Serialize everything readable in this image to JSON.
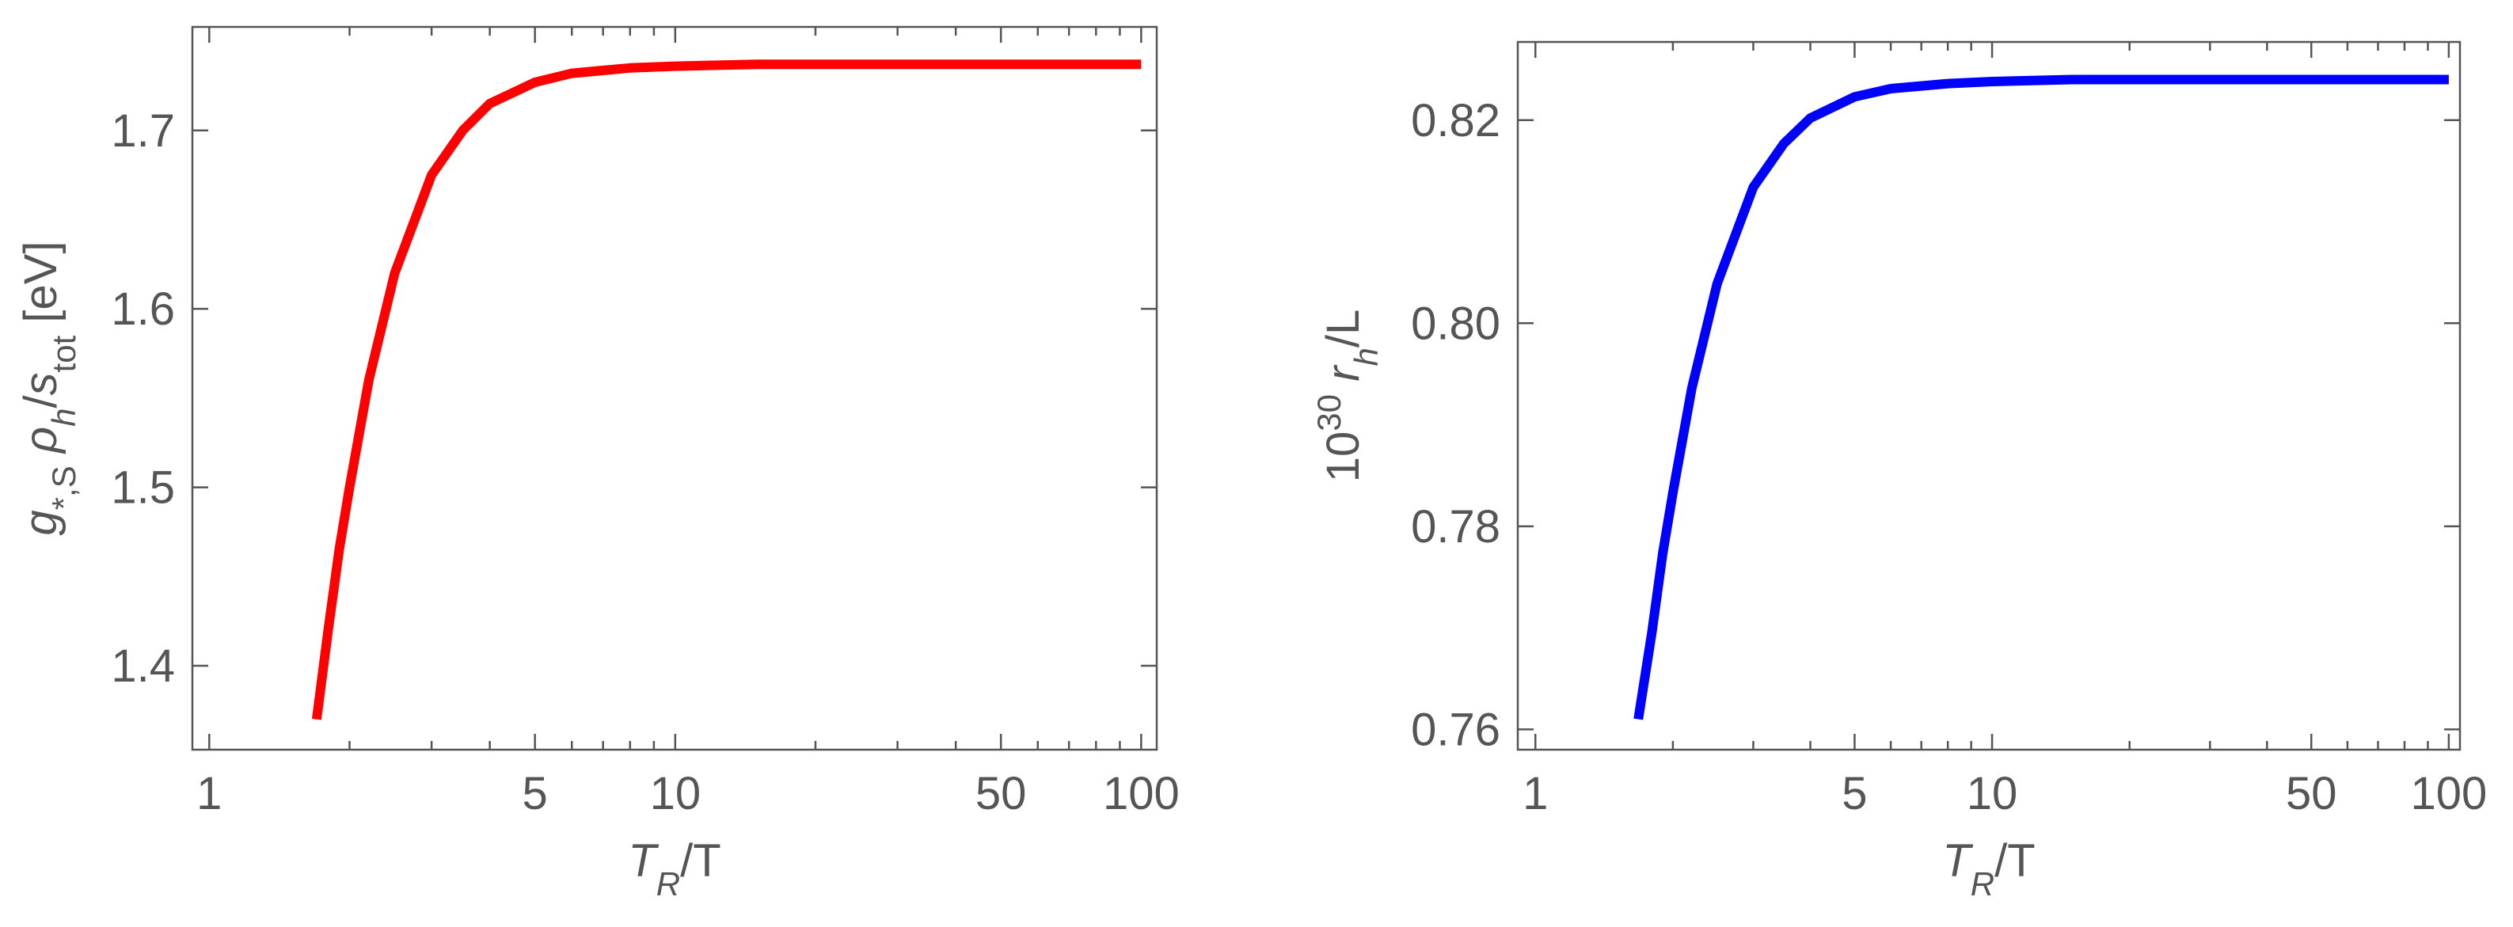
{
  "chart_data": [
    {
      "type": "line",
      "log_x": true,
      "xlabel": [
        "T",
        "R",
        "/T"
      ],
      "ylabel": [
        "g",
        "*,S",
        " ρ",
        "h",
        "/",
        "s",
        "tot",
        " [eV]"
      ],
      "xlim": [
        0.92,
        108
      ],
      "ylim": [
        1.353,
        1.758
      ],
      "xticks": [
        1,
        5,
        10,
        50,
        100
      ],
      "xminorticks": [
        2,
        3,
        4,
        6,
        7,
        8,
        9,
        20,
        30,
        40,
        60,
        70,
        80,
        90
      ],
      "yticks": [
        1.4,
        1.5,
        1.6,
        1.7
      ],
      "x": [
        1.7,
        1.8,
        1.9,
        2,
        2.2,
        2.5,
        3,
        3.5,
        4,
        5,
        6,
        8,
        10,
        15,
        20,
        30,
        50,
        100
      ],
      "series": [
        {
          "color": "#ff0000",
          "values": [
            1.37,
            1.42,
            1.465,
            1.5,
            1.56,
            1.62,
            1.675,
            1.7,
            1.715,
            1.727,
            1.732,
            1.735,
            1.736,
            1.737,
            1.737,
            1.737,
            1.737,
            1.737
          ]
        }
      ]
    },
    {
      "type": "line",
      "log_x": true,
      "xlabel": [
        "T",
        "R",
        "/T"
      ],
      "ylabel": [
        "10",
        "30",
        " r",
        "h",
        "/L"
      ],
      "xlim": [
        0.915,
        105.8
      ],
      "ylim": [
        0.758,
        0.8277
      ],
      "xticks": [
        1,
        5,
        10,
        50,
        100
      ],
      "xminorticks": [
        2,
        3,
        4,
        6,
        7,
        8,
        9,
        20,
        30,
        40,
        60,
        70,
        80,
        90
      ],
      "yticks": [
        0.76,
        0.78,
        {
          "value": 0.8,
          "label": "0.80"
        },
        0.82
      ],
      "x": [
        1.68,
        1.8,
        1.9,
        2,
        2.2,
        2.5,
        3,
        3.5,
        4,
        5,
        6,
        8,
        10,
        15,
        20,
        30,
        50,
        100
      ],
      "series": [
        {
          "color": "#0000ff",
          "values": [
            0.761,
            0.7696,
            0.7773,
            0.7833,
            0.7936,
            0.8039,
            0.8134,
            0.8177,
            0.8202,
            0.8223,
            0.8231,
            0.8236,
            0.8238,
            0.824,
            0.824,
            0.824,
            0.824,
            0.824
          ]
        }
      ]
    }
  ]
}
